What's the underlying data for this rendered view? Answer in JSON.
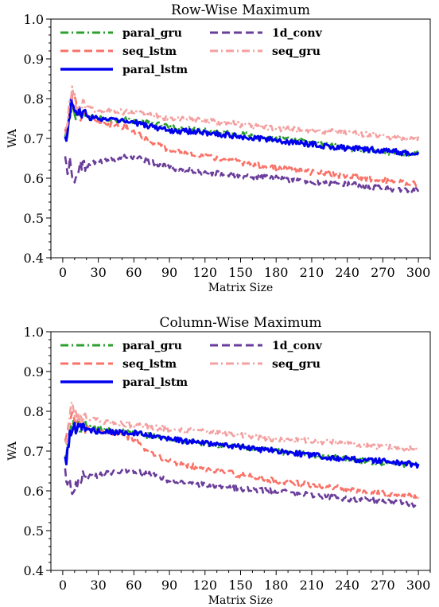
{
  "chart_data": [
    {
      "type": "line",
      "title": "Row-Wise Maximum",
      "xlabel": "Matrix Size",
      "ylabel": "WA",
      "xlim": [
        -10,
        310
      ],
      "ylim": [
        0.4,
        1.0
      ],
      "xticks": [
        0,
        30,
        60,
        90,
        120,
        150,
        180,
        210,
        240,
        270,
        300
      ],
      "yticks": [
        0.4,
        0.5,
        0.6,
        0.7,
        0.8,
        0.9,
        1.0
      ],
      "legend_position": "top-left",
      "series": [
        {
          "name": "paral_gru",
          "color": "#2ca02c",
          "dash": "dash-dot",
          "anchors": [
            [
              3,
              0.7
            ],
            [
              6,
              0.76
            ],
            [
              8,
              0.78
            ],
            [
              12,
              0.76
            ],
            [
              30,
              0.75
            ],
            [
              60,
              0.745
            ],
            [
              90,
              0.73
            ],
            [
              120,
              0.72
            ],
            [
              150,
              0.71
            ],
            [
              180,
              0.7
            ],
            [
              210,
              0.69
            ],
            [
              240,
              0.675
            ],
            [
              270,
              0.665
            ],
            [
              300,
              0.66
            ]
          ]
        },
        {
          "name": "seq_lstm",
          "color": "#fa7268",
          "dash": "dashed",
          "anchors": [
            [
              3,
              0.72
            ],
            [
              6,
              0.78
            ],
            [
              9,
              0.8
            ],
            [
              15,
              0.76
            ],
            [
              30,
              0.74
            ],
            [
              50,
              0.73
            ],
            [
              60,
              0.72
            ],
            [
              70,
              0.7
            ],
            [
              90,
              0.67
            ],
            [
              120,
              0.655
            ],
            [
              150,
              0.64
            ],
            [
              180,
              0.625
            ],
            [
              210,
              0.615
            ],
            [
              240,
              0.605
            ],
            [
              270,
              0.595
            ],
            [
              300,
              0.585
            ]
          ]
        },
        {
          "name": "paral_lstm",
          "color": "#0000ee",
          "dash": "solid",
          "anchors": [
            [
              3,
              0.7
            ],
            [
              5,
              0.74
            ],
            [
              7,
              0.79
            ],
            [
              10,
              0.77
            ],
            [
              20,
              0.755
            ],
            [
              30,
              0.75
            ],
            [
              60,
              0.74
            ],
            [
              90,
              0.72
            ],
            [
              120,
              0.715
            ],
            [
              150,
              0.705
            ],
            [
              180,
              0.695
            ],
            [
              210,
              0.685
            ],
            [
              240,
              0.675
            ],
            [
              270,
              0.67
            ],
            [
              300,
              0.66
            ]
          ]
        },
        {
          "name": "1d_conv",
          "color": "#6a3d9a",
          "dash": "dashed",
          "anchors": [
            [
              2,
              0.65
            ],
            [
              4,
              0.62
            ],
            [
              6,
              0.64
            ],
            [
              9,
              0.6
            ],
            [
              15,
              0.63
            ],
            [
              30,
              0.64
            ],
            [
              45,
              0.65
            ],
            [
              60,
              0.655
            ],
            [
              75,
              0.64
            ],
            [
              90,
              0.625
            ],
            [
              120,
              0.615
            ],
            [
              150,
              0.605
            ],
            [
              180,
              0.6
            ],
            [
              210,
              0.59
            ],
            [
              240,
              0.585
            ],
            [
              270,
              0.575
            ],
            [
              300,
              0.568
            ]
          ]
        },
        {
          "name": "seq_gru",
          "color": "#f4a0a0",
          "dash": "dash-dot",
          "anchors": [
            [
              3,
              0.72
            ],
            [
              6,
              0.8
            ],
            [
              8,
              0.82
            ],
            [
              12,
              0.79
            ],
            [
              30,
              0.77
            ],
            [
              60,
              0.765
            ],
            [
              90,
              0.75
            ],
            [
              120,
              0.745
            ],
            [
              150,
              0.735
            ],
            [
              180,
              0.725
            ],
            [
              210,
              0.72
            ],
            [
              240,
              0.715
            ],
            [
              270,
              0.705
            ],
            [
              300,
              0.7
            ]
          ]
        }
      ]
    },
    {
      "type": "line",
      "title": "Column-Wise Maximum",
      "xlabel": "Matrix Size",
      "ylabel": "WA",
      "xlim": [
        -10,
        310
      ],
      "ylim": [
        0.4,
        1.0
      ],
      "xticks": [
        0,
        30,
        60,
        90,
        120,
        150,
        180,
        210,
        240,
        270,
        300
      ],
      "yticks": [
        0.4,
        0.5,
        0.6,
        0.7,
        0.8,
        0.9,
        1.0
      ],
      "legend_position": "top-left",
      "series": [
        {
          "name": "paral_gru",
          "color": "#2ca02c",
          "dash": "dash-dot",
          "anchors": [
            [
              3,
              0.68
            ],
            [
              6,
              0.74
            ],
            [
              9,
              0.77
            ],
            [
              15,
              0.76
            ],
            [
              30,
              0.755
            ],
            [
              60,
              0.745
            ],
            [
              90,
              0.73
            ],
            [
              120,
              0.72
            ],
            [
              150,
              0.71
            ],
            [
              180,
              0.7
            ],
            [
              210,
              0.69
            ],
            [
              240,
              0.68
            ],
            [
              270,
              0.67
            ],
            [
              300,
              0.665
            ]
          ]
        },
        {
          "name": "seq_lstm",
          "color": "#fa7268",
          "dash": "dashed",
          "anchors": [
            [
              3,
              0.72
            ],
            [
              6,
              0.78
            ],
            [
              9,
              0.79
            ],
            [
              15,
              0.76
            ],
            [
              30,
              0.75
            ],
            [
              50,
              0.74
            ],
            [
              60,
              0.73
            ],
            [
              70,
              0.7
            ],
            [
              90,
              0.675
            ],
            [
              120,
              0.655
            ],
            [
              150,
              0.64
            ],
            [
              180,
              0.625
            ],
            [
              210,
              0.615
            ],
            [
              240,
              0.605
            ],
            [
              270,
              0.595
            ],
            [
              300,
              0.585
            ]
          ]
        },
        {
          "name": "paral_lstm",
          "color": "#0000ee",
          "dash": "solid",
          "anchors": [
            [
              3,
              0.68
            ],
            [
              6,
              0.74
            ],
            [
              9,
              0.76
            ],
            [
              20,
              0.755
            ],
            [
              30,
              0.75
            ],
            [
              60,
              0.745
            ],
            [
              90,
              0.73
            ],
            [
              120,
              0.72
            ],
            [
              150,
              0.71
            ],
            [
              180,
              0.7
            ],
            [
              210,
              0.69
            ],
            [
              240,
              0.68
            ],
            [
              270,
              0.675
            ],
            [
              300,
              0.665
            ]
          ]
        },
        {
          "name": "1d_conv",
          "color": "#6a3d9a",
          "dash": "dashed",
          "anchors": [
            [
              2,
              0.65
            ],
            [
              4,
              0.61
            ],
            [
              6,
              0.63
            ],
            [
              9,
              0.6
            ],
            [
              15,
              0.63
            ],
            [
              30,
              0.64
            ],
            [
              45,
              0.65
            ],
            [
              60,
              0.65
            ],
            [
              75,
              0.64
            ],
            [
              90,
              0.625
            ],
            [
              120,
              0.615
            ],
            [
              150,
              0.605
            ],
            [
              180,
              0.6
            ],
            [
              210,
              0.59
            ],
            [
              240,
              0.58
            ],
            [
              270,
              0.575
            ],
            [
              300,
              0.565
            ]
          ]
        },
        {
          "name": "seq_gru",
          "color": "#f4a0a0",
          "dash": "dash-dot",
          "anchors": [
            [
              3,
              0.72
            ],
            [
              6,
              0.8
            ],
            [
              8,
              0.82
            ],
            [
              12,
              0.79
            ],
            [
              30,
              0.775
            ],
            [
              60,
              0.765
            ],
            [
              90,
              0.755
            ],
            [
              120,
              0.75
            ],
            [
              150,
              0.74
            ],
            [
              180,
              0.73
            ],
            [
              210,
              0.725
            ],
            [
              240,
              0.72
            ],
            [
              270,
              0.71
            ],
            [
              300,
              0.705
            ]
          ]
        }
      ]
    }
  ]
}
